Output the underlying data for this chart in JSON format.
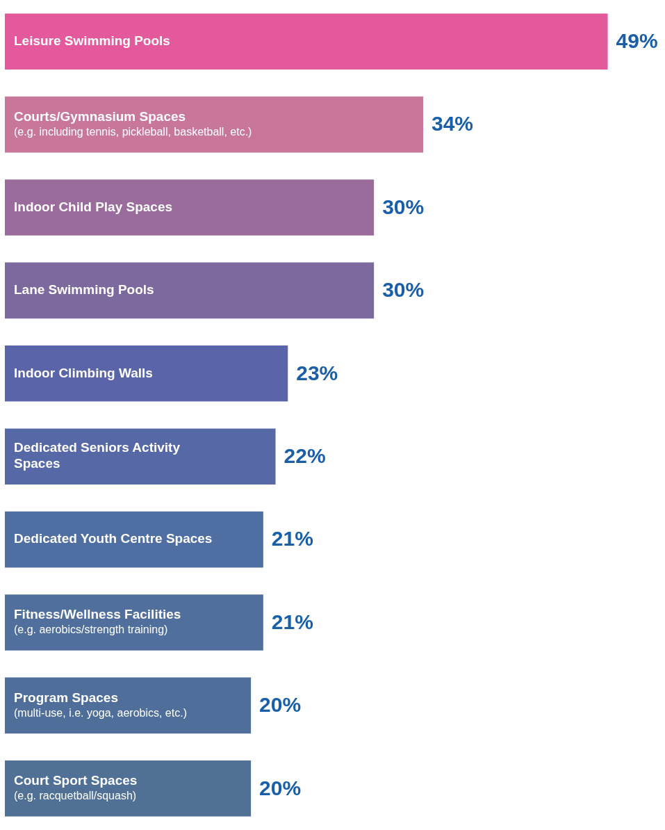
{
  "chart_data": {
    "type": "bar",
    "orientation": "horizontal",
    "categories": [
      "Leisure Swimming Pools",
      "Courts/Gymnasium Spaces\n(e.g. including tennis, pickleball, basketball, etc.)",
      "Indoor Child Play Spaces",
      "Lane Swimming Pools",
      "Indoor Climbing Walls",
      "Dedicated Seniors Activity Spaces",
      "Dedicated Youth Centre Spaces",
      "Fitness/Wellness Facilities\n(e.g. aerobics/strength training)",
      "Program Spaces\n(multi-use, i.e. yoga, aerobics, etc.)",
      "Court Sport Spaces\n(e.g. racquetball/squash)"
    ],
    "values": [
      49,
      34,
      30,
      30,
      23,
      22,
      21,
      21,
      20,
      20
    ],
    "value_labels": [
      "49%",
      "34%",
      "30%",
      "30%",
      "23%",
      "22%",
      "21%",
      "21%",
      "20%",
      "20%"
    ],
    "colors": [
      "#e4589c",
      "#c8779a",
      "#9a6c9c",
      "#7c6a9e",
      "#5a64a8",
      "#5668a6",
      "#4f6ea2",
      "#506f9c",
      "#4f6e9a",
      "#507096"
    ]
  }
}
